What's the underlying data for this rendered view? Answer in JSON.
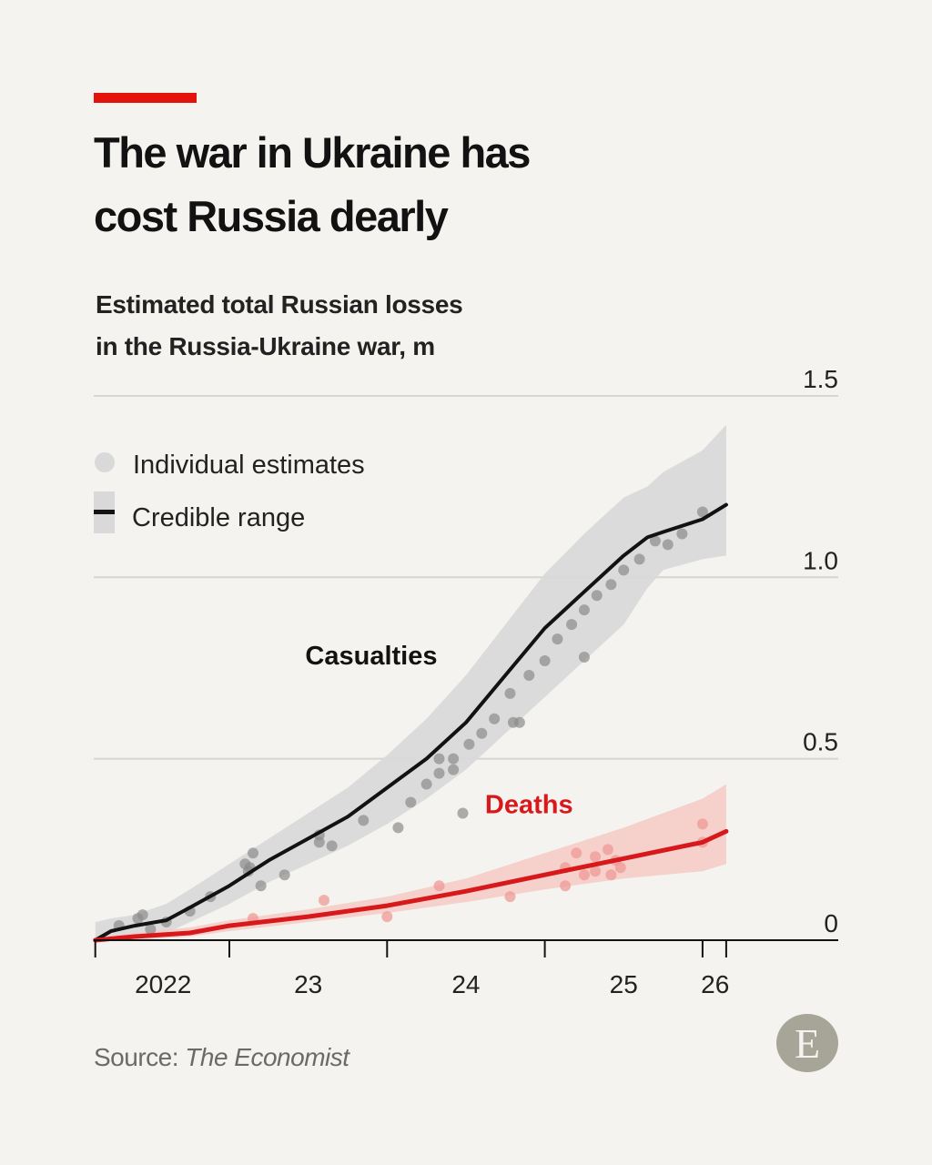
{
  "header": {
    "title_line1": "The war in Ukraine has",
    "title_line2": "cost Russia dearly",
    "subtitle_line1": "Estimated total Russian losses",
    "subtitle_line2": "in the Russia-Ukraine war, m"
  },
  "footer": {
    "source_label": "Source: ",
    "source_name": "The Economist",
    "logo_letter": "E"
  },
  "colors": {
    "background": "#f4f3ef",
    "accent_red": "#e3120b",
    "casualties_line": "#121212",
    "casualties_band": "#d9d9d9",
    "casualties_dots": "#8c8c8c",
    "deaths_line": "#d7191c",
    "deaths_band": "#f6c9c4",
    "deaths_dots": "#ef9a96",
    "grid": "#d6d5d0"
  },
  "chart_data": {
    "type": "line",
    "title": "The war in Ukraine has cost Russia dearly",
    "subtitle": "Estimated total Russian losses in the Russia-Ukraine war, m",
    "xlabel": "",
    "ylabel": "m",
    "xlim": [
      2022.15,
      2026.15
    ],
    "ylim": [
      0,
      1.5
    ],
    "yticks": [
      0,
      0.5,
      1.0,
      1.5
    ],
    "ytick_labels": [
      "0",
      "0.5",
      "1.0",
      "1.5"
    ],
    "xticks": [
      2022.15,
      2023.0,
      2024.0,
      2025.0,
      2026.0,
      2026.15
    ],
    "xtick_labels": [
      {
        "label": "2022",
        "x": 2022.58
      },
      {
        "label": "23",
        "x": 2023.5
      },
      {
        "label": "24",
        "x": 2024.5
      },
      {
        "label": "25",
        "x": 2025.5
      },
      {
        "label": "26",
        "x": 2026.08
      }
    ],
    "grid": true,
    "legend": {
      "placement": "top-left",
      "entries": [
        {
          "label": "Individual estimates",
          "symbol": "dot"
        },
        {
          "label": "Credible range",
          "symbol": "line-with-band"
        }
      ]
    },
    "annotations": [
      {
        "text": "Casualties",
        "x": 2023.9,
        "y": 0.76,
        "color": "#121212"
      },
      {
        "text": "Deaths",
        "x": 2024.9,
        "y": 0.35,
        "color": "#d7191c"
      }
    ],
    "series": [
      {
        "name": "Casualties",
        "x": [
          2022.15,
          2022.25,
          2022.4,
          2022.6,
          2022.75,
          2023.0,
          2023.25,
          2023.5,
          2023.75,
          2024.0,
          2024.25,
          2024.5,
          2024.75,
          2025.0,
          2025.25,
          2025.5,
          2025.65,
          2025.75,
          2026.0,
          2026.15
        ],
        "y": [
          0.0,
          0.025,
          0.04,
          0.055,
          0.09,
          0.15,
          0.22,
          0.28,
          0.34,
          0.42,
          0.5,
          0.6,
          0.73,
          0.86,
          0.96,
          1.06,
          1.11,
          1.125,
          1.16,
          1.2
        ],
        "lower": [
          0.0,
          0.0,
          0.005,
          0.02,
          0.05,
          0.1,
          0.16,
          0.21,
          0.26,
          0.32,
          0.39,
          0.47,
          0.57,
          0.67,
          0.77,
          0.87,
          0.97,
          1.02,
          1.05,
          1.06
        ],
        "upper": [
          0.05,
          0.06,
          0.07,
          0.1,
          0.14,
          0.21,
          0.28,
          0.35,
          0.42,
          0.51,
          0.61,
          0.73,
          0.87,
          1.01,
          1.12,
          1.22,
          1.25,
          1.29,
          1.35,
          1.42
        ]
      },
      {
        "name": "Deaths",
        "x": [
          2022.15,
          2022.4,
          2022.75,
          2023.0,
          2023.5,
          2024.0,
          2024.5,
          2025.0,
          2025.5,
          2026.0,
          2026.15
        ],
        "y": [
          0.0,
          0.01,
          0.02,
          0.04,
          0.065,
          0.095,
          0.135,
          0.18,
          0.225,
          0.27,
          0.3
        ],
        "lower": [
          0.0,
          0.0,
          0.01,
          0.025,
          0.05,
          0.075,
          0.105,
          0.14,
          0.17,
          0.19,
          0.21
        ],
        "upper": [
          0.01,
          0.02,
          0.035,
          0.055,
          0.085,
          0.12,
          0.17,
          0.24,
          0.31,
          0.39,
          0.43
        ]
      }
    ],
    "points": [
      {
        "series": "Casualties",
        "x": 2022.3,
        "y": 0.04
      },
      {
        "series": "Casualties",
        "x": 2022.42,
        "y": 0.06
      },
      {
        "series": "Casualties",
        "x": 2022.45,
        "y": 0.07
      },
      {
        "series": "Casualties",
        "x": 2022.5,
        "y": 0.03
      },
      {
        "series": "Casualties",
        "x": 2022.6,
        "y": 0.05
      },
      {
        "series": "Casualties",
        "x": 2022.75,
        "y": 0.08
      },
      {
        "series": "Casualties",
        "x": 2022.88,
        "y": 0.12
      },
      {
        "series": "Casualties",
        "x": 2023.1,
        "y": 0.21
      },
      {
        "series": "Casualties",
        "x": 2023.13,
        "y": 0.2
      },
      {
        "series": "Casualties",
        "x": 2023.15,
        "y": 0.24
      },
      {
        "series": "Casualties",
        "x": 2023.12,
        "y": 0.19
      },
      {
        "series": "Casualties",
        "x": 2023.2,
        "y": 0.15
      },
      {
        "series": "Casualties",
        "x": 2023.35,
        "y": 0.18
      },
      {
        "series": "Casualties",
        "x": 2023.57,
        "y": 0.27
      },
      {
        "series": "Casualties",
        "x": 2023.57,
        "y": 0.29
      },
      {
        "series": "Casualties",
        "x": 2023.65,
        "y": 0.26
      },
      {
        "series": "Casualties",
        "x": 2023.85,
        "y": 0.33
      },
      {
        "series": "Casualties",
        "x": 2024.07,
        "y": 0.31
      },
      {
        "series": "Casualties",
        "x": 2024.15,
        "y": 0.38
      },
      {
        "series": "Casualties",
        "x": 2024.25,
        "y": 0.43
      },
      {
        "series": "Casualties",
        "x": 2024.33,
        "y": 0.46
      },
      {
        "series": "Casualties",
        "x": 2024.33,
        "y": 0.5
      },
      {
        "series": "Casualties",
        "x": 2024.42,
        "y": 0.5
      },
      {
        "series": "Casualties",
        "x": 2024.42,
        "y": 0.47
      },
      {
        "series": "Casualties",
        "x": 2024.48,
        "y": 0.35
      },
      {
        "series": "Casualties",
        "x": 2024.52,
        "y": 0.54
      },
      {
        "series": "Casualties",
        "x": 2024.6,
        "y": 0.57
      },
      {
        "series": "Casualties",
        "x": 2024.68,
        "y": 0.61
      },
      {
        "series": "Casualties",
        "x": 2024.78,
        "y": 0.68
      },
      {
        "series": "Casualties",
        "x": 2024.8,
        "y": 0.6
      },
      {
        "series": "Casualties",
        "x": 2024.84,
        "y": 0.6
      },
      {
        "series": "Casualties",
        "x": 2024.9,
        "y": 0.73
      },
      {
        "series": "Casualties",
        "x": 2025.0,
        "y": 0.77
      },
      {
        "series": "Casualties",
        "x": 2025.08,
        "y": 0.83
      },
      {
        "series": "Casualties",
        "x": 2025.17,
        "y": 0.87
      },
      {
        "series": "Casualties",
        "x": 2025.25,
        "y": 0.91
      },
      {
        "series": "Casualties",
        "x": 2025.25,
        "y": 0.78
      },
      {
        "series": "Casualties",
        "x": 2025.33,
        "y": 0.95
      },
      {
        "series": "Casualties",
        "x": 2025.42,
        "y": 0.98
      },
      {
        "series": "Casualties",
        "x": 2025.5,
        "y": 1.02
      },
      {
        "series": "Casualties",
        "x": 2025.6,
        "y": 1.05
      },
      {
        "series": "Casualties",
        "x": 2025.7,
        "y": 1.1
      },
      {
        "series": "Casualties",
        "x": 2025.78,
        "y": 1.09
      },
      {
        "series": "Casualties",
        "x": 2025.87,
        "y": 1.12
      },
      {
        "series": "Casualties",
        "x": 2026.0,
        "y": 1.18
      },
      {
        "series": "Deaths",
        "x": 2023.15,
        "y": 0.06
      },
      {
        "series": "Deaths",
        "x": 2023.6,
        "y": 0.11
      },
      {
        "series": "Deaths",
        "x": 2024.0,
        "y": 0.065
      },
      {
        "series": "Deaths",
        "x": 2024.33,
        "y": 0.15
      },
      {
        "series": "Deaths",
        "x": 2024.78,
        "y": 0.12
      },
      {
        "series": "Deaths",
        "x": 2025.13,
        "y": 0.15
      },
      {
        "series": "Deaths",
        "x": 2025.13,
        "y": 0.2
      },
      {
        "series": "Deaths",
        "x": 2025.2,
        "y": 0.24
      },
      {
        "series": "Deaths",
        "x": 2025.25,
        "y": 0.18
      },
      {
        "series": "Deaths",
        "x": 2025.32,
        "y": 0.23
      },
      {
        "series": "Deaths",
        "x": 2025.32,
        "y": 0.19
      },
      {
        "series": "Deaths",
        "x": 2025.4,
        "y": 0.25
      },
      {
        "series": "Deaths",
        "x": 2025.42,
        "y": 0.18
      },
      {
        "series": "Deaths",
        "x": 2025.45,
        "y": 0.22
      },
      {
        "series": "Deaths",
        "x": 2025.48,
        "y": 0.2
      },
      {
        "series": "Deaths",
        "x": 2026.0,
        "y": 0.32
      },
      {
        "series": "Deaths",
        "x": 2026.0,
        "y": 0.27
      }
    ]
  }
}
